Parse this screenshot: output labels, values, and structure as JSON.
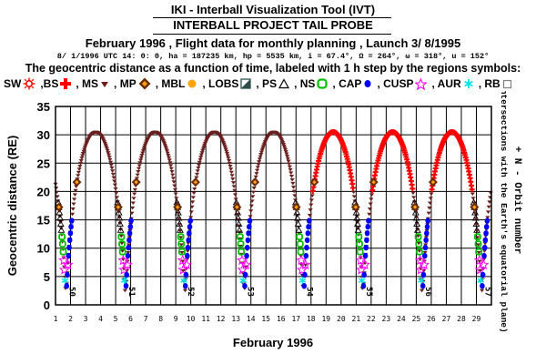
{
  "header": {
    "title": "IKI - Interball Visualization Tool (IVT)",
    "subtitle": "INTERBALL PROJECT TAIL PROBE",
    "info_line": "February 1996 ,  Flight data for monthly planning ,   Launch  3/ 8/1995",
    "orbit_params": "8/ 1/1996 UTC 14: 0: 0, ha = 187235 km, hp =   5535 km, i = 67.4°, Ω = 264°, ω = 318°, u = 152°",
    "description": "The geocentric distance as a function of time, labeled with 1 h step by the regions symbols:"
  },
  "legend": [
    {
      "label": "SW",
      "icon": "sun-burst-icon",
      "color": "#ff0000"
    },
    {
      "label": ",BS",
      "icon": "red-cross-icon",
      "color": "#ff0000"
    },
    {
      "label": ", MS",
      "icon": "triangle-down-icon",
      "color": "#6b1e1e"
    },
    {
      "label": ", MP",
      "icon": "diamond-icon",
      "color": "#6b2a00"
    },
    {
      "label": ", MBL",
      "icon": "sun-icon",
      "color": "#ffa500"
    },
    {
      "label": ", LOBS",
      "icon": "split-square-icon",
      "color": "#2f4f4f"
    },
    {
      "label": ", PS",
      "icon": "triangle-up-icon",
      "color": "#000000"
    },
    {
      "label": ", NS",
      "icon": "square-ring-icon",
      "color": "#00c000"
    },
    {
      "label": ", CAP",
      "icon": "dot-icon",
      "color": "#0000ff"
    },
    {
      "label": ", CUSP",
      "icon": "star-icon",
      "color": "#ff00ff"
    },
    {
      "label": ", AUR",
      "icon": "asterisk-icon",
      "color": "#00e5e5"
    },
    {
      "label": ", RB",
      "icon": "square-icon",
      "color": "#808080"
    }
  ],
  "chart_data": {
    "type": "line",
    "title": "",
    "xlabel": "February 1996",
    "ylabel": "Geocentric distance (RE)",
    "right_label": "+ N - Orbit number",
    "right_sublabel": "(Intersections with the Earth's equatorial plane)",
    "xlim": [
      1,
      30
    ],
    "ylim": [
      0,
      35
    ],
    "x_ticks": [
      "1",
      "2",
      "3",
      "4",
      "5",
      "6",
      "7",
      "8",
      "9",
      "10",
      "11",
      "12",
      "13",
      "14",
      "15",
      "16",
      "17",
      "18",
      "19",
      "20",
      "21",
      "22",
      "23",
      "24",
      "25",
      "26",
      "27",
      "28",
      "29"
    ],
    "y_ticks": [
      0,
      5,
      10,
      15,
      20,
      25,
      30,
      35
    ],
    "grid": true,
    "orbit_apogee_re": 30.5,
    "orbit_perigee_re": 1.9,
    "perigees": [
      {
        "day": 1.7,
        "orbit": "50"
      },
      {
        "day": 5.65,
        "orbit": "51"
      },
      {
        "day": 9.6,
        "orbit": "52"
      },
      {
        "day": 13.55,
        "orbit": "53"
      },
      {
        "day": 17.5,
        "orbit": "54"
      },
      {
        "day": 21.45,
        "orbit": "55"
      },
      {
        "day": 25.4,
        "orbit": "56"
      },
      {
        "day": 29.35,
        "orbit": "57"
      }
    ],
    "apogees": [
      3.67,
      7.62,
      11.57,
      15.52,
      19.47,
      23.42,
      27.37
    ],
    "solar_wind_intervals": [
      [
        18.0,
        20.9
      ],
      [
        21.9,
        24.9
      ],
      [
        25.9,
        28.8
      ],
      [
        28.9,
        30.0
      ]
    ]
  }
}
